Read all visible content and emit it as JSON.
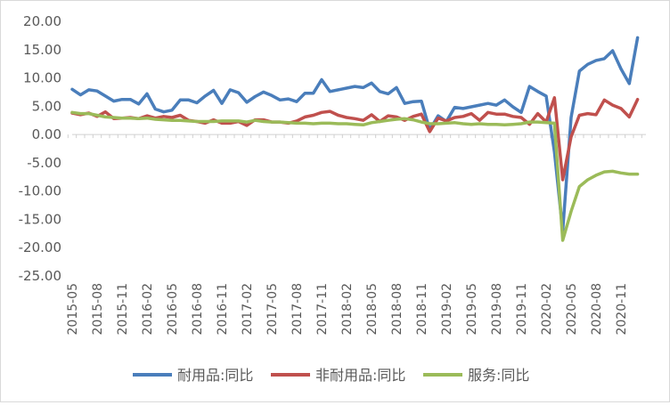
{
  "chart_data": {
    "type": "line",
    "title": "",
    "xlabel": "",
    "ylabel": "",
    "ylim": [
      -25,
      20
    ],
    "y_ticks": [
      "20.00",
      "15.00",
      "10.00",
      "5.00",
      "0.00",
      "-5.00",
      "-10.00",
      "-15.00",
      "-20.00",
      "-25.00"
    ],
    "y_tick_values": [
      20,
      15,
      10,
      5,
      0,
      -5,
      -10,
      -15,
      -20,
      -25
    ],
    "x_tick_labels": [
      "2015-05",
      "2015-08",
      "2015-11",
      "2016-02",
      "2016-05",
      "2016-08",
      "2016-11",
      "2017-02",
      "2017-05",
      "2017-08",
      "2017-11",
      "2018-02",
      "2018-05",
      "2018-08",
      "2018-11",
      "2019-02",
      "2019-05",
      "2019-08",
      "2019-11",
      "2020-02",
      "2020-05",
      "2020-08",
      "2020-11"
    ],
    "x_start": "2015-05",
    "x_end": "2021-02",
    "grid": false,
    "legend_position": "bottom",
    "series": [
      {
        "name": "耐用品:同比",
        "color": "#4a7ebb",
        "values": [
          8.0,
          7.0,
          7.9,
          7.7,
          6.8,
          5.9,
          6.2,
          6.2,
          5.4,
          7.2,
          4.5,
          4.0,
          4.3,
          6.1,
          6.1,
          5.6,
          6.8,
          7.8,
          5.5,
          7.9,
          7.4,
          5.7,
          6.7,
          7.5,
          6.9,
          6.1,
          6.3,
          5.8,
          7.3,
          7.3,
          9.7,
          7.6,
          7.9,
          8.2,
          8.5,
          8.3,
          9.1,
          7.6,
          7.2,
          8.3,
          5.5,
          5.8,
          5.9,
          0.8,
          3.3,
          2.3,
          4.8,
          4.6,
          4.9,
          5.2,
          5.5,
          5.2,
          6.1,
          4.9,
          3.9,
          8.5,
          7.6,
          6.8,
          -3.1,
          -17.0,
          3.0,
          11.2,
          12.4,
          13.1,
          13.4,
          14.8,
          11.6,
          9.0,
          17.1
        ]
      },
      {
        "name": "非耐用品:同比",
        "color": "#c0504d",
        "values": [
          3.8,
          3.5,
          3.8,
          3.2,
          4.0,
          2.8,
          2.9,
          3.0,
          2.8,
          3.3,
          2.9,
          3.2,
          3.0,
          3.4,
          2.5,
          2.3,
          2.0,
          2.6,
          2.0,
          2.0,
          2.3,
          1.6,
          2.6,
          2.6,
          2.2,
          2.2,
          2.0,
          2.4,
          3.1,
          3.4,
          3.9,
          4.1,
          3.4,
          3.0,
          2.8,
          2.5,
          3.5,
          2.3,
          3.3,
          3.1,
          2.5,
          3.2,
          3.6,
          0.5,
          2.9,
          2.4,
          3.0,
          3.2,
          3.7,
          2.5,
          3.9,
          3.6,
          3.6,
          3.2,
          3.0,
          1.8,
          3.7,
          2.2,
          6.5,
          -8.0,
          -0.4,
          3.4,
          3.7,
          3.5,
          6.1,
          5.2,
          4.6,
          3.1,
          6.2
        ]
      },
      {
        "name": "服务:同比",
        "color": "#9bbb59",
        "values": [
          3.9,
          3.7,
          3.7,
          3.4,
          3.1,
          3.0,
          2.9,
          2.9,
          2.8,
          2.9,
          2.7,
          2.6,
          2.5,
          2.5,
          2.4,
          2.3,
          2.3,
          2.3,
          2.4,
          2.4,
          2.4,
          2.2,
          2.5,
          2.3,
          2.2,
          2.2,
          2.1,
          2.0,
          2.0,
          1.9,
          2.0,
          2.0,
          1.9,
          1.9,
          1.8,
          1.7,
          2.1,
          2.3,
          2.5,
          2.7,
          2.8,
          2.6,
          2.2,
          1.9,
          1.9,
          2.0,
          2.1,
          1.9,
          1.8,
          1.9,
          1.8,
          1.8,
          1.7,
          1.8,
          1.9,
          2.2,
          2.2,
          2.1,
          2.0,
          -18.7,
          -13.6,
          -9.2,
          -8.0,
          -7.2,
          -6.6,
          -6.5,
          -6.8,
          -7.0,
          -7.0
        ]
      }
    ]
  }
}
